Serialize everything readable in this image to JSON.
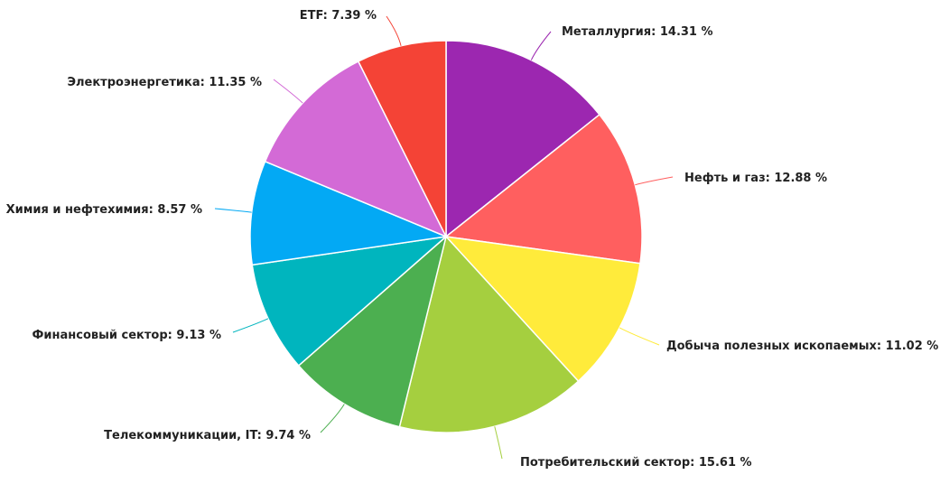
{
  "chart_data": {
    "type": "pie",
    "title": "",
    "unit_suffix": " %",
    "slices": [
      {
        "label": "Металлургия",
        "value": 14.31,
        "display": "14.31",
        "color": "#9c27b0"
      },
      {
        "label": "Нефть и газ",
        "value": 12.88,
        "display": "12.88",
        "color": "#ff5f5f"
      },
      {
        "label": "Добыча полезных ископаемых",
        "value": 11.02,
        "display": "11.02",
        "color": "#ffeb3b"
      },
      {
        "label": "Потребительский сектор",
        "value": 15.61,
        "display": "15.61",
        "color": "#a5cf3f"
      },
      {
        "label": "Телекоммуникации, IT",
        "value": 9.74,
        "display": "9.74",
        "color": "#4caf50"
      },
      {
        "label": "Финансовый сектор",
        "value": 9.13,
        "display": "9.13",
        "color": "#00b5be"
      },
      {
        "label": "Химия и нефтехимия",
        "value": 8.57,
        "display": "8.57",
        "color": "#03a9f4"
      },
      {
        "label": "Электроэнергетика",
        "value": 11.35,
        "display": "11.35",
        "color": "#d36ad6"
      },
      {
        "label": "ETF",
        "value": 7.39,
        "display": "7.39",
        "color": "#f44336"
      }
    ]
  }
}
